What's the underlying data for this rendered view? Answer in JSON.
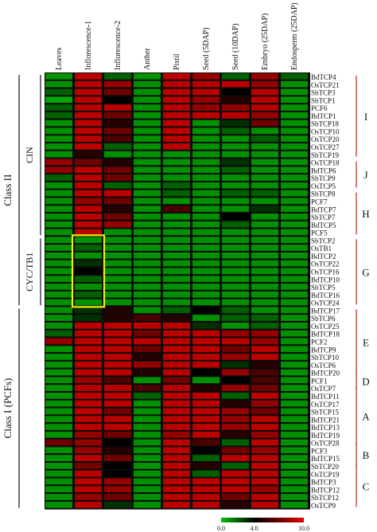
{
  "chart_data": {
    "type": "heatmap",
    "title": "",
    "columns": [
      "Leaves",
      "Inflorescence-1",
      "Inflorescence-2",
      "Anther",
      "Pistil",
      "Seed (5DAP)",
      "Seed (10DAP)",
      "Embryo (25DAP)",
      "Endosperm (25DAP)"
    ],
    "rows": [
      "BdTCP4",
      "OsTCP21",
      "SbTCP3",
      "SbTCP1",
      "PCF6",
      "BdTCP1",
      "SbTCP18",
      "OsTCP10",
      "OsTCP20",
      "OsTCP27",
      "SbTCP19",
      "OsTCP18",
      "BdTCP6",
      "SbTCP9",
      "OsTCP5",
      "SbTCP8",
      "PCF7",
      "BdTCP7",
      "SbTCP7",
      "BdTCP5",
      "PCF5",
      "SbTCP2",
      "OsTB1",
      "BdTCP2",
      "OsTCP22",
      "OsTCP16",
      "BdTCP10",
      "SbTCP5",
      "BdTCP16",
      "OsTCP24",
      "BdTCP17",
      "SbTCP6",
      "OsTCP25",
      "BdTCP18",
      "PCF2",
      "BdTCP9",
      "SbTCP10",
      "OsTCP6",
      "BdTCP20",
      "PCF1",
      "OsTCP7",
      "BdTCP11",
      "OsTCP17",
      "SbTCP15",
      "BdTCP21",
      "BdTCP13",
      "BdTCP19",
      "OsTCP28",
      "PCF3",
      "BdTCP15",
      "SbTCP20",
      "OsTCP19",
      "BdTCP3",
      "BdTCP12",
      "SbTCP12",
      "OsTCP9"
    ],
    "values": [
      [
        1,
        9,
        2,
        1,
        9,
        8,
        2,
        8,
        2
      ],
      [
        1,
        9,
        8,
        1,
        9,
        9,
        9,
        8,
        1
      ],
      [
        2,
        9,
        7,
        1,
        9,
        9,
        4,
        9,
        1
      ],
      [
        0.5,
        9,
        4,
        1,
        9,
        8,
        5,
        9,
        1
      ],
      [
        2,
        9,
        9,
        1,
        9,
        8,
        8,
        9,
        1
      ],
      [
        2,
        9,
        7,
        1,
        9,
        9,
        9,
        8,
        1
      ],
      [
        1,
        9,
        5,
        1,
        9,
        1,
        3,
        7,
        1
      ],
      [
        1,
        9,
        7,
        1,
        9,
        1,
        2,
        1,
        1
      ],
      [
        1,
        9,
        6,
        1,
        9,
        1,
        1,
        2,
        1
      ],
      [
        1,
        9,
        2,
        1,
        9,
        1,
        1,
        1,
        1
      ],
      [
        1,
        5,
        1,
        1,
        1,
        1,
        1,
        1,
        1
      ],
      [
        8,
        7,
        5,
        1,
        1,
        1,
        3,
        1,
        1
      ],
      [
        8,
        9,
        7,
        1,
        1,
        1,
        2,
        1,
        1
      ],
      [
        2,
        9,
        7,
        1,
        1,
        1,
        1,
        1,
        1
      ],
      [
        1,
        9,
        2,
        1,
        2,
        1,
        1,
        1,
        1
      ],
      [
        1,
        9,
        9,
        1,
        2,
        1,
        2,
        2,
        1
      ],
      [
        1,
        8,
        7,
        1,
        1,
        1,
        1,
        1,
        1
      ],
      [
        1,
        9,
        5,
        1,
        6,
        1,
        1,
        3,
        1
      ],
      [
        1,
        9,
        7,
        1,
        1,
        1,
        4,
        1,
        1
      ],
      [
        1,
        9,
        8,
        1,
        1,
        1,
        2,
        1,
        1
      ],
      [
        1,
        9,
        1,
        1,
        1,
        1,
        1,
        1,
        1
      ],
      [
        1,
        1,
        1,
        1,
        1,
        1,
        1,
        1,
        1
      ],
      [
        1,
        2,
        1,
        1,
        1,
        1,
        1,
        1,
        1
      ],
      [
        1,
        1,
        1,
        1,
        1,
        1,
        1,
        1,
        1
      ],
      [
        1,
        3,
        1,
        1,
        1,
        1,
        1,
        1,
        1
      ],
      [
        1,
        4,
        1,
        1,
        1,
        1,
        1,
        1,
        1
      ],
      [
        1,
        2,
        1,
        1,
        1,
        1,
        1,
        1,
        1
      ],
      [
        1,
        1,
        1,
        1,
        1,
        1,
        1,
        1,
        1
      ],
      [
        1,
        2,
        1,
        1,
        1,
        1,
        1,
        1,
        1
      ],
      [
        1,
        1,
        1,
        1,
        1,
        1,
        1,
        1,
        1
      ],
      [
        1,
        3,
        5,
        1,
        2,
        4,
        2,
        1,
        1
      ],
      [
        1,
        3,
        5,
        6,
        5,
        1,
        2,
        2,
        1
      ],
      [
        1,
        9,
        9,
        9,
        9,
        3,
        1,
        2,
        1
      ],
      [
        2,
        9,
        9,
        7,
        9,
        9,
        8,
        8,
        1
      ],
      [
        8,
        9,
        9,
        9,
        9,
        9,
        9,
        8,
        1
      ],
      [
        1,
        9,
        9,
        7,
        9,
        9,
        7,
        9,
        1
      ],
      [
        1,
        9,
        9,
        5,
        9,
        9,
        8,
        9,
        1
      ],
      [
        1,
        9,
        9,
        8,
        9,
        9,
        3,
        5,
        1
      ],
      [
        1,
        9,
        9,
        5,
        9,
        4,
        8,
        6,
        1
      ],
      [
        1,
        8,
        6,
        1,
        7,
        1,
        4,
        6,
        1
      ],
      [
        1,
        9,
        9,
        6,
        9,
        5,
        8,
        7,
        1
      ],
      [
        1,
        9,
        9,
        2,
        9,
        9,
        2,
        9,
        1
      ],
      [
        1,
        9,
        9,
        1,
        9,
        9,
        5,
        8,
        1
      ],
      [
        1,
        9,
        7,
        1,
        9,
        9,
        8,
        7,
        1
      ],
      [
        1,
        9,
        9,
        1,
        9,
        9,
        8,
        9,
        1
      ],
      [
        1,
        9,
        9,
        1,
        9,
        9,
        8,
        9,
        1
      ],
      [
        1,
        8,
        7,
        1,
        8,
        9,
        5,
        8,
        1
      ],
      [
        7,
        8,
        4,
        1,
        9,
        6,
        2,
        9,
        1
      ],
      [
        1,
        8,
        5,
        1,
        9,
        4,
        7,
        8,
        1
      ],
      [
        1,
        9,
        7,
        1,
        9,
        2,
        9,
        9,
        1
      ],
      [
        1,
        7,
        4,
        1,
        9,
        5,
        2,
        9,
        1
      ],
      [
        1,
        9,
        4,
        1,
        9,
        2,
        9,
        9,
        1
      ],
      [
        1,
        9,
        8,
        1,
        9,
        9,
        9,
        9,
        1
      ],
      [
        1,
        9,
        8,
        1,
        9,
        9,
        9,
        8,
        1
      ],
      [
        1,
        8,
        7,
        1,
        9,
        9,
        7,
        9,
        1
      ],
      [
        1,
        9,
        3,
        1,
        9,
        9,
        5,
        9,
        1
      ]
    ],
    "colorbar": {
      "ticks": [
        "0.0",
        "4.0",
        "10.0"
      ],
      "min": 0,
      "mid": 4,
      "max": 10,
      "colors": [
        "#00c000",
        "#000000",
        "#e00000"
      ]
    },
    "class_labels": [
      {
        "text": "Class II",
        "rows": [
          0,
          29
        ]
      },
      {
        "text": "Class I (PCFs)",
        "rows": [
          30,
          55
        ]
      }
    ],
    "subclass_labels": [
      {
        "text": "CIN",
        "rows": [
          0,
          20
        ]
      },
      {
        "text": "CYC/TB1",
        "rows": [
          21,
          29
        ]
      }
    ],
    "groups": [
      {
        "text": "I",
        "rows": [
          0,
          10
        ]
      },
      {
        "text": "J",
        "rows": [
          11,
          14
        ]
      },
      {
        "text": "H",
        "rows": [
          15,
          20
        ]
      },
      {
        "text": "G",
        "rows": [
          21,
          29
        ]
      },
      {
        "text": "E",
        "rows": [
          30,
          38
        ]
      },
      {
        "text": "D",
        "rows": [
          38,
          40
        ]
      },
      {
        "text": "A",
        "rows": [
          40,
          47
        ]
      },
      {
        "text": "B",
        "rows": [
          47,
          50
        ]
      },
      {
        "text": "C",
        "rows": [
          50,
          55
        ]
      }
    ],
    "highlight": {
      "column": 1,
      "rows": [
        21,
        29
      ],
      "color": "#f0f000"
    }
  }
}
